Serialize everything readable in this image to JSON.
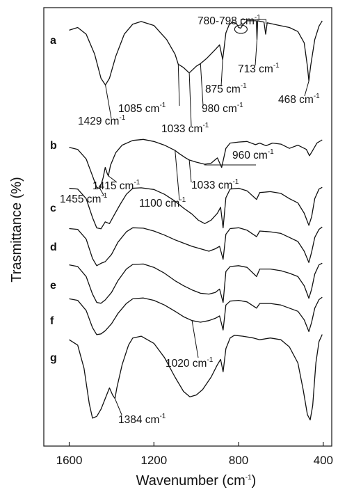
{
  "chart_data": {
    "type": "line",
    "xlabel_main": "Wavenumber (cm",
    "xlabel_sup": "-1",
    "xlabel_tail": ")",
    "ylabel": "Trasmittance (%)",
    "xlim": [
      1720,
      360
    ],
    "x_reversed": true,
    "x_ticks": [
      1600,
      1200,
      800,
      400
    ],
    "x_tick_labels": [
      "1600",
      "1200",
      "800",
      "400"
    ],
    "y_ticks_shown": false,
    "grid": false,
    "series": [
      {
        "name": "a",
        "points": [
          [
            1600,
            0.16
          ],
          [
            1560,
            0.12
          ],
          [
            1520,
            0.22
          ],
          [
            1480,
            0.52
          ],
          [
            1450,
            0.88
          ],
          [
            1429,
            0.98
          ],
          [
            1410,
            0.88
          ],
          [
            1380,
            0.55
          ],
          [
            1340,
            0.22
          ],
          [
            1300,
            0.07
          ],
          [
            1260,
            0.03
          ],
          [
            1200,
            0.09
          ],
          [
            1140,
            0.3
          ],
          [
            1100,
            0.52
          ],
          [
            1085,
            0.67
          ],
          [
            1060,
            0.72
          ],
          [
            1033,
            0.8
          ],
          [
            1000,
            0.7
          ],
          [
            980,
            0.66
          ],
          [
            950,
            0.58
          ],
          [
            910,
            0.45
          ],
          [
            890,
            0.38
          ],
          [
            875,
            0.6
          ],
          [
            860,
            0.2
          ],
          [
            845,
            0.08
          ],
          [
            830,
            0.04
          ],
          [
            810,
            0.06
          ],
          [
            800,
            0.12
          ],
          [
            790,
            0.13
          ],
          [
            780,
            0.08
          ],
          [
            760,
            0.02
          ],
          [
            730,
            0.02
          ],
          [
            716,
            0.02
          ],
          [
            713,
            0.3
          ],
          [
            710,
            0.02
          ],
          [
            680,
            0.04
          ],
          [
            672,
            0.22
          ],
          [
            665,
            0.05
          ],
          [
            620,
            0.08
          ],
          [
            560,
            0.12
          ],
          [
            520,
            0.18
          ],
          [
            490,
            0.35
          ],
          [
            475,
            0.7
          ],
          [
            468,
            0.92
          ],
          [
            460,
            0.7
          ],
          [
            440,
            0.3
          ],
          [
            420,
            0.1
          ],
          [
            405,
            0.02
          ]
        ]
      },
      {
        "name": "b",
        "points": [
          [
            1600,
            0.18
          ],
          [
            1560,
            0.22
          ],
          [
            1520,
            0.4
          ],
          [
            1490,
            0.72
          ],
          [
            1470,
            0.94
          ],
          [
            1455,
            0.96
          ],
          [
            1440,
            0.76
          ],
          [
            1430,
            0.56
          ],
          [
            1420,
            0.68
          ],
          [
            1415,
            0.72
          ],
          [
            1405,
            0.52
          ],
          [
            1380,
            0.28
          ],
          [
            1350,
            0.14
          ],
          [
            1300,
            0.05
          ],
          [
            1250,
            0.03
          ],
          [
            1200,
            0.07
          ],
          [
            1150,
            0.14
          ],
          [
            1100,
            0.24
          ],
          [
            1080,
            0.3
          ],
          [
            1050,
            0.38
          ],
          [
            1033,
            0.42
          ],
          [
            1000,
            0.46
          ],
          [
            960,
            0.5
          ],
          [
            930,
            0.48
          ],
          [
            900,
            0.38
          ],
          [
            880,
            0.56
          ],
          [
            860,
            0.2
          ],
          [
            840,
            0.1
          ],
          [
            800,
            0.08
          ],
          [
            760,
            0.07
          ],
          [
            720,
            0.13
          ],
          [
            700,
            0.1
          ],
          [
            670,
            0.15
          ],
          [
            640,
            0.1
          ],
          [
            600,
            0.12
          ],
          [
            560,
            0.2
          ],
          [
            520,
            0.14
          ],
          [
            480,
            0.22
          ],
          [
            465,
            0.34
          ],
          [
            450,
            0.24
          ],
          [
            430,
            0.1
          ],
          [
            405,
            0.04
          ]
        ]
      },
      {
        "name": "c",
        "points": [
          [
            1600,
            0.04
          ],
          [
            1560,
            0.06
          ],
          [
            1520,
            0.28
          ],
          [
            1490,
            0.72
          ],
          [
            1470,
            0.96
          ],
          [
            1450,
            0.98
          ],
          [
            1430,
            0.82
          ],
          [
            1410,
            0.86
          ],
          [
            1390,
            0.68
          ],
          [
            1360,
            0.42
          ],
          [
            1330,
            0.18
          ],
          [
            1300,
            0.04
          ],
          [
            1260,
            0.03
          ],
          [
            1200,
            0.07
          ],
          [
            1150,
            0.18
          ],
          [
            1100,
            0.34
          ],
          [
            1060,
            0.5
          ],
          [
            1020,
            0.64
          ],
          [
            990,
            0.78
          ],
          [
            960,
            0.86
          ],
          [
            930,
            0.78
          ],
          [
            900,
            0.62
          ],
          [
            885,
            0.48
          ],
          [
            873,
            0.96
          ],
          [
            860,
            0.26
          ],
          [
            840,
            0.06
          ],
          [
            800,
            0.04
          ],
          [
            760,
            0.1
          ],
          [
            715,
            0.3
          ],
          [
            700,
            0.14
          ],
          [
            650,
            0.12
          ],
          [
            600,
            0.16
          ],
          [
            560,
            0.28
          ],
          [
            520,
            0.38
          ],
          [
            490,
            0.62
          ],
          [
            468,
            0.9
          ],
          [
            455,
            0.7
          ],
          [
            440,
            0.28
          ],
          [
            420,
            0.06
          ],
          [
            405,
            0.02
          ]
        ]
      },
      {
        "name": "d",
        "points": [
          [
            1600,
            0.06
          ],
          [
            1560,
            0.08
          ],
          [
            1520,
            0.32
          ],
          [
            1490,
            0.8
          ],
          [
            1470,
            0.98
          ],
          [
            1450,
            0.92
          ],
          [
            1430,
            0.88
          ],
          [
            1400,
            0.7
          ],
          [
            1370,
            0.4
          ],
          [
            1330,
            0.14
          ],
          [
            1300,
            0.04
          ],
          [
            1250,
            0.05
          ],
          [
            1200,
            0.12
          ],
          [
            1150,
            0.22
          ],
          [
            1100,
            0.34
          ],
          [
            1060,
            0.42
          ],
          [
            1020,
            0.5
          ],
          [
            980,
            0.56
          ],
          [
            940,
            0.62
          ],
          [
            910,
            0.56
          ],
          [
            890,
            0.5
          ],
          [
            873,
            0.82
          ],
          [
            860,
            0.2
          ],
          [
            840,
            0.06
          ],
          [
            800,
            0.04
          ],
          [
            760,
            0.1
          ],
          [
            715,
            0.26
          ],
          [
            700,
            0.12
          ],
          [
            650,
            0.14
          ],
          [
            600,
            0.18
          ],
          [
            560,
            0.28
          ],
          [
            520,
            0.38
          ],
          [
            490,
            0.62
          ],
          [
            468,
            0.9
          ],
          [
            455,
            0.64
          ],
          [
            440,
            0.28
          ],
          [
            420,
            0.08
          ],
          [
            405,
            0.02
          ]
        ]
      },
      {
        "name": "e",
        "points": [
          [
            1600,
            0.06
          ],
          [
            1560,
            0.1
          ],
          [
            1520,
            0.34
          ],
          [
            1490,
            0.76
          ],
          [
            1470,
            0.96
          ],
          [
            1450,
            0.98
          ],
          [
            1430,
            0.9
          ],
          [
            1400,
            0.72
          ],
          [
            1370,
            0.44
          ],
          [
            1330,
            0.16
          ],
          [
            1300,
            0.05
          ],
          [
            1250,
            0.04
          ],
          [
            1200,
            0.12
          ],
          [
            1150,
            0.26
          ],
          [
            1100,
            0.44
          ],
          [
            1060,
            0.56
          ],
          [
            1020,
            0.66
          ],
          [
            980,
            0.74
          ],
          [
            940,
            0.76
          ],
          [
            910,
            0.72
          ],
          [
            890,
            0.64
          ],
          [
            873,
            0.96
          ],
          [
            860,
            0.22
          ],
          [
            840,
            0.1
          ],
          [
            800,
            0.08
          ],
          [
            760,
            0.12
          ],
          [
            715,
            0.34
          ],
          [
            700,
            0.16
          ],
          [
            650,
            0.16
          ],
          [
            600,
            0.2
          ],
          [
            560,
            0.26
          ],
          [
            520,
            0.34
          ],
          [
            490,
            0.56
          ],
          [
            468,
            0.86
          ],
          [
            455,
            0.64
          ],
          [
            440,
            0.28
          ],
          [
            420,
            0.06
          ],
          [
            405,
            0.02
          ]
        ]
      },
      {
        "name": "f",
        "points": [
          [
            1600,
            0.06
          ],
          [
            1560,
            0.1
          ],
          [
            1520,
            0.36
          ],
          [
            1490,
            0.8
          ],
          [
            1470,
            0.98
          ],
          [
            1450,
            0.96
          ],
          [
            1430,
            0.88
          ],
          [
            1400,
            0.7
          ],
          [
            1370,
            0.44
          ],
          [
            1330,
            0.18
          ],
          [
            1300,
            0.06
          ],
          [
            1250,
            0.04
          ],
          [
            1200,
            0.1
          ],
          [
            1150,
            0.22
          ],
          [
            1100,
            0.38
          ],
          [
            1060,
            0.52
          ],
          [
            1020,
            0.62
          ],
          [
            980,
            0.66
          ],
          [
            940,
            0.62
          ],
          [
            910,
            0.56
          ],
          [
            890,
            0.5
          ],
          [
            873,
            0.86
          ],
          [
            860,
            0.22
          ],
          [
            840,
            0.12
          ],
          [
            800,
            0.1
          ],
          [
            760,
            0.14
          ],
          [
            715,
            0.3
          ],
          [
            700,
            0.18
          ],
          [
            650,
            0.18
          ],
          [
            600,
            0.22
          ],
          [
            560,
            0.3
          ],
          [
            520,
            0.38
          ],
          [
            490,
            0.6
          ],
          [
            468,
            0.9
          ],
          [
            455,
            0.66
          ],
          [
            440,
            0.3
          ],
          [
            420,
            0.08
          ],
          [
            405,
            0.02
          ]
        ]
      },
      {
        "name": "g",
        "points": [
          [
            1600,
            0.08
          ],
          [
            1560,
            0.14
          ],
          [
            1530,
            0.4
          ],
          [
            1505,
            0.8
          ],
          [
            1490,
            0.96
          ],
          [
            1470,
            0.94
          ],
          [
            1450,
            0.86
          ],
          [
            1430,
            0.74
          ],
          [
            1410,
            0.62
          ],
          [
            1395,
            0.7
          ],
          [
            1384,
            0.74
          ],
          [
            1375,
            0.62
          ],
          [
            1350,
            0.36
          ],
          [
            1320,
            0.14
          ],
          [
            1300,
            0.06
          ],
          [
            1260,
            0.04
          ],
          [
            1200,
            0.12
          ],
          [
            1150,
            0.28
          ],
          [
            1100,
            0.5
          ],
          [
            1060,
            0.66
          ],
          [
            1030,
            0.72
          ],
          [
            1000,
            0.7
          ],
          [
            970,
            0.64
          ],
          [
            930,
            0.5
          ],
          [
            900,
            0.36
          ],
          [
            885,
            0.3
          ],
          [
            873,
            0.44
          ],
          [
            860,
            0.18
          ],
          [
            840,
            0.06
          ],
          [
            820,
            0.03
          ],
          [
            780,
            0.04
          ],
          [
            730,
            0.06
          ],
          [
            700,
            0.08
          ],
          [
            650,
            0.06
          ],
          [
            600,
            0.08
          ],
          [
            560,
            0.16
          ],
          [
            520,
            0.34
          ],
          [
            495,
            0.64
          ],
          [
            475,
            0.92
          ],
          [
            462,
            0.98
          ],
          [
            450,
            0.82
          ],
          [
            435,
            0.34
          ],
          [
            420,
            0.1
          ],
          [
            405,
            0.02
          ]
        ]
      }
    ],
    "annotations": [
      {
        "series": "a",
        "label": "1429 cm",
        "sup": "-1",
        "x": 1429
      },
      {
        "series": "a",
        "label": "1085 cm",
        "sup": "-1",
        "x": 1085
      },
      {
        "series": "a",
        "label": "1033 cm",
        "sup": "-1",
        "x": 1033
      },
      {
        "series": "a",
        "label": "980 cm",
        "sup": "-1",
        "x": 980
      },
      {
        "series": "a",
        "label": "875 cm",
        "sup": "-1",
        "x": 875
      },
      {
        "series": "a",
        "label": "780-798 cm",
        "sup": "-1",
        "x": 789
      },
      {
        "series": "a",
        "label": "713 cm",
        "sup": "-1",
        "x": 713
      },
      {
        "series": "a",
        "label": "468 cm",
        "sup": "-1",
        "x": 468
      },
      {
        "series": "b",
        "label": "1455 cm",
        "sup": "-1",
        "x": 1455
      },
      {
        "series": "b",
        "label": "1415 cm",
        "sup": "-1",
        "x": 1415
      },
      {
        "series": "b",
        "label": "1100 cm",
        "sup": "-1",
        "x": 1100
      },
      {
        "series": "b",
        "label": "1033 cm",
        "sup": "-1",
        "x": 1033
      },
      {
        "series": "b",
        "label": "960 cm",
        "sup": "-1",
        "x": 960
      },
      {
        "series": "f",
        "label": "1020 cm",
        "sup": "-1",
        "x": 1020
      },
      {
        "series": "g",
        "label": "1384 cm",
        "sup": "-1",
        "x": 1384
      }
    ]
  }
}
